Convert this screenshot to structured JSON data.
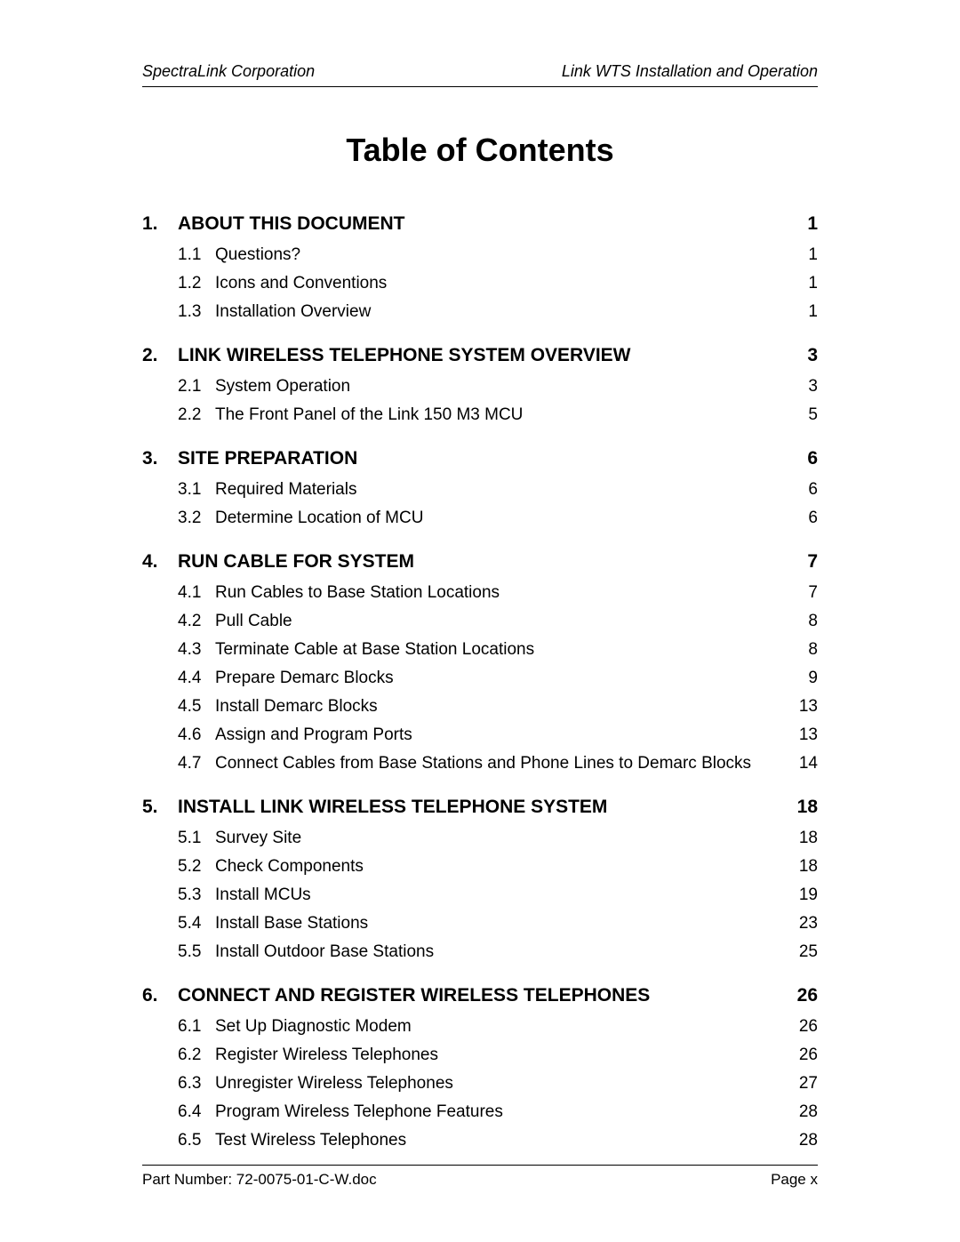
{
  "header": {
    "left": "SpectraLink Corporation",
    "right": "Link WTS Installation and Operation"
  },
  "title": "Table of Contents",
  "typography": {
    "body_font_family": "Arial, Helvetica, sans-serif",
    "title_fontsize_pt": 27,
    "title_fontweight": "bold",
    "section_fontsize_pt": 16,
    "section_fontweight": "bold",
    "sub_fontsize_pt": 14,
    "header_fontstyle": "italic",
    "header_fontsize_pt": 13,
    "footer_fontsize_pt": 13,
    "text_color": "#000000",
    "background_color": "#ffffff",
    "rule_color": "#000000"
  },
  "sections": [
    {
      "num": "1.",
      "title": "ABOUT THIS DOCUMENT",
      "page": "1",
      "subs": [
        {
          "num": "1.1",
          "title": "Questions?",
          "page": "1"
        },
        {
          "num": "1.2",
          "title": "Icons and Conventions",
          "page": "1"
        },
        {
          "num": "1.3",
          "title": "Installation Overview",
          "page": "1"
        }
      ]
    },
    {
      "num": "2.",
      "title": "LINK WIRELESS TELEPHONE SYSTEM OVERVIEW",
      "page": "3",
      "subs": [
        {
          "num": "2.1",
          "title": "System Operation",
          "page": "3"
        },
        {
          "num": "2.2",
          "title": "The Front Panel of the Link 150 M3 MCU",
          "page": "5"
        }
      ]
    },
    {
      "num": "3.",
      "title": "SITE PREPARATION",
      "page": "6",
      "subs": [
        {
          "num": "3.1",
          "title": "Required Materials",
          "page": "6"
        },
        {
          "num": "3.2",
          "title": "Determine Location of MCU",
          "page": "6"
        }
      ]
    },
    {
      "num": "4.",
      "title": "RUN CABLE FOR SYSTEM",
      "page": "7",
      "subs": [
        {
          "num": "4.1",
          "title": "Run Cables to Base Station Locations",
          "page": "7"
        },
        {
          "num": "4.2",
          "title": "Pull Cable",
          "page": "8"
        },
        {
          "num": "4.3",
          "title": "Terminate Cable at Base Station Locations",
          "page": "8"
        },
        {
          "num": "4.4",
          "title": "Prepare Demarc Blocks",
          "page": "9"
        },
        {
          "num": "4.5",
          "title": "Install Demarc Blocks",
          "page": "13"
        },
        {
          "num": "4.6",
          "title": "Assign and Program Ports",
          "page": "13"
        },
        {
          "num": "4.7",
          "title": "Connect Cables from Base Stations and Phone Lines to Demarc Blocks",
          "page": "14"
        }
      ]
    },
    {
      "num": "5.",
      "title": "INSTALL LINK WIRELESS TELEPHONE SYSTEM",
      "page": "18",
      "subs": [
        {
          "num": "5.1",
          "title": "Survey Site",
          "page": "18"
        },
        {
          "num": "5.2",
          "title": "Check Components",
          "page": "18"
        },
        {
          "num": "5.3",
          "title": "Install MCUs",
          "page": "19"
        },
        {
          "num": "5.4",
          "title": "Install Base Stations",
          "page": "23"
        },
        {
          "num": "5.5",
          "title": "Install Outdoor Base Stations",
          "page": "25"
        }
      ]
    },
    {
      "num": "6.",
      "title": "CONNECT AND REGISTER WIRELESS TELEPHONES",
      "page": "26",
      "subs": [
        {
          "num": "6.1",
          "title": "Set Up Diagnostic Modem",
          "page": "26"
        },
        {
          "num": "6.2",
          "title": "Register Wireless Telephones",
          "page": "26"
        },
        {
          "num": "6.3",
          "title": "Unregister Wireless Telephones",
          "page": "27"
        },
        {
          "num": "6.4",
          "title": "Program Wireless Telephone Features",
          "page": "28"
        },
        {
          "num": "6.5",
          "title": "Test Wireless Telephones",
          "page": "28"
        }
      ]
    }
  ],
  "footer": {
    "left": "Part Number: 72-0075-01-C-W.doc",
    "right": "Page x"
  }
}
